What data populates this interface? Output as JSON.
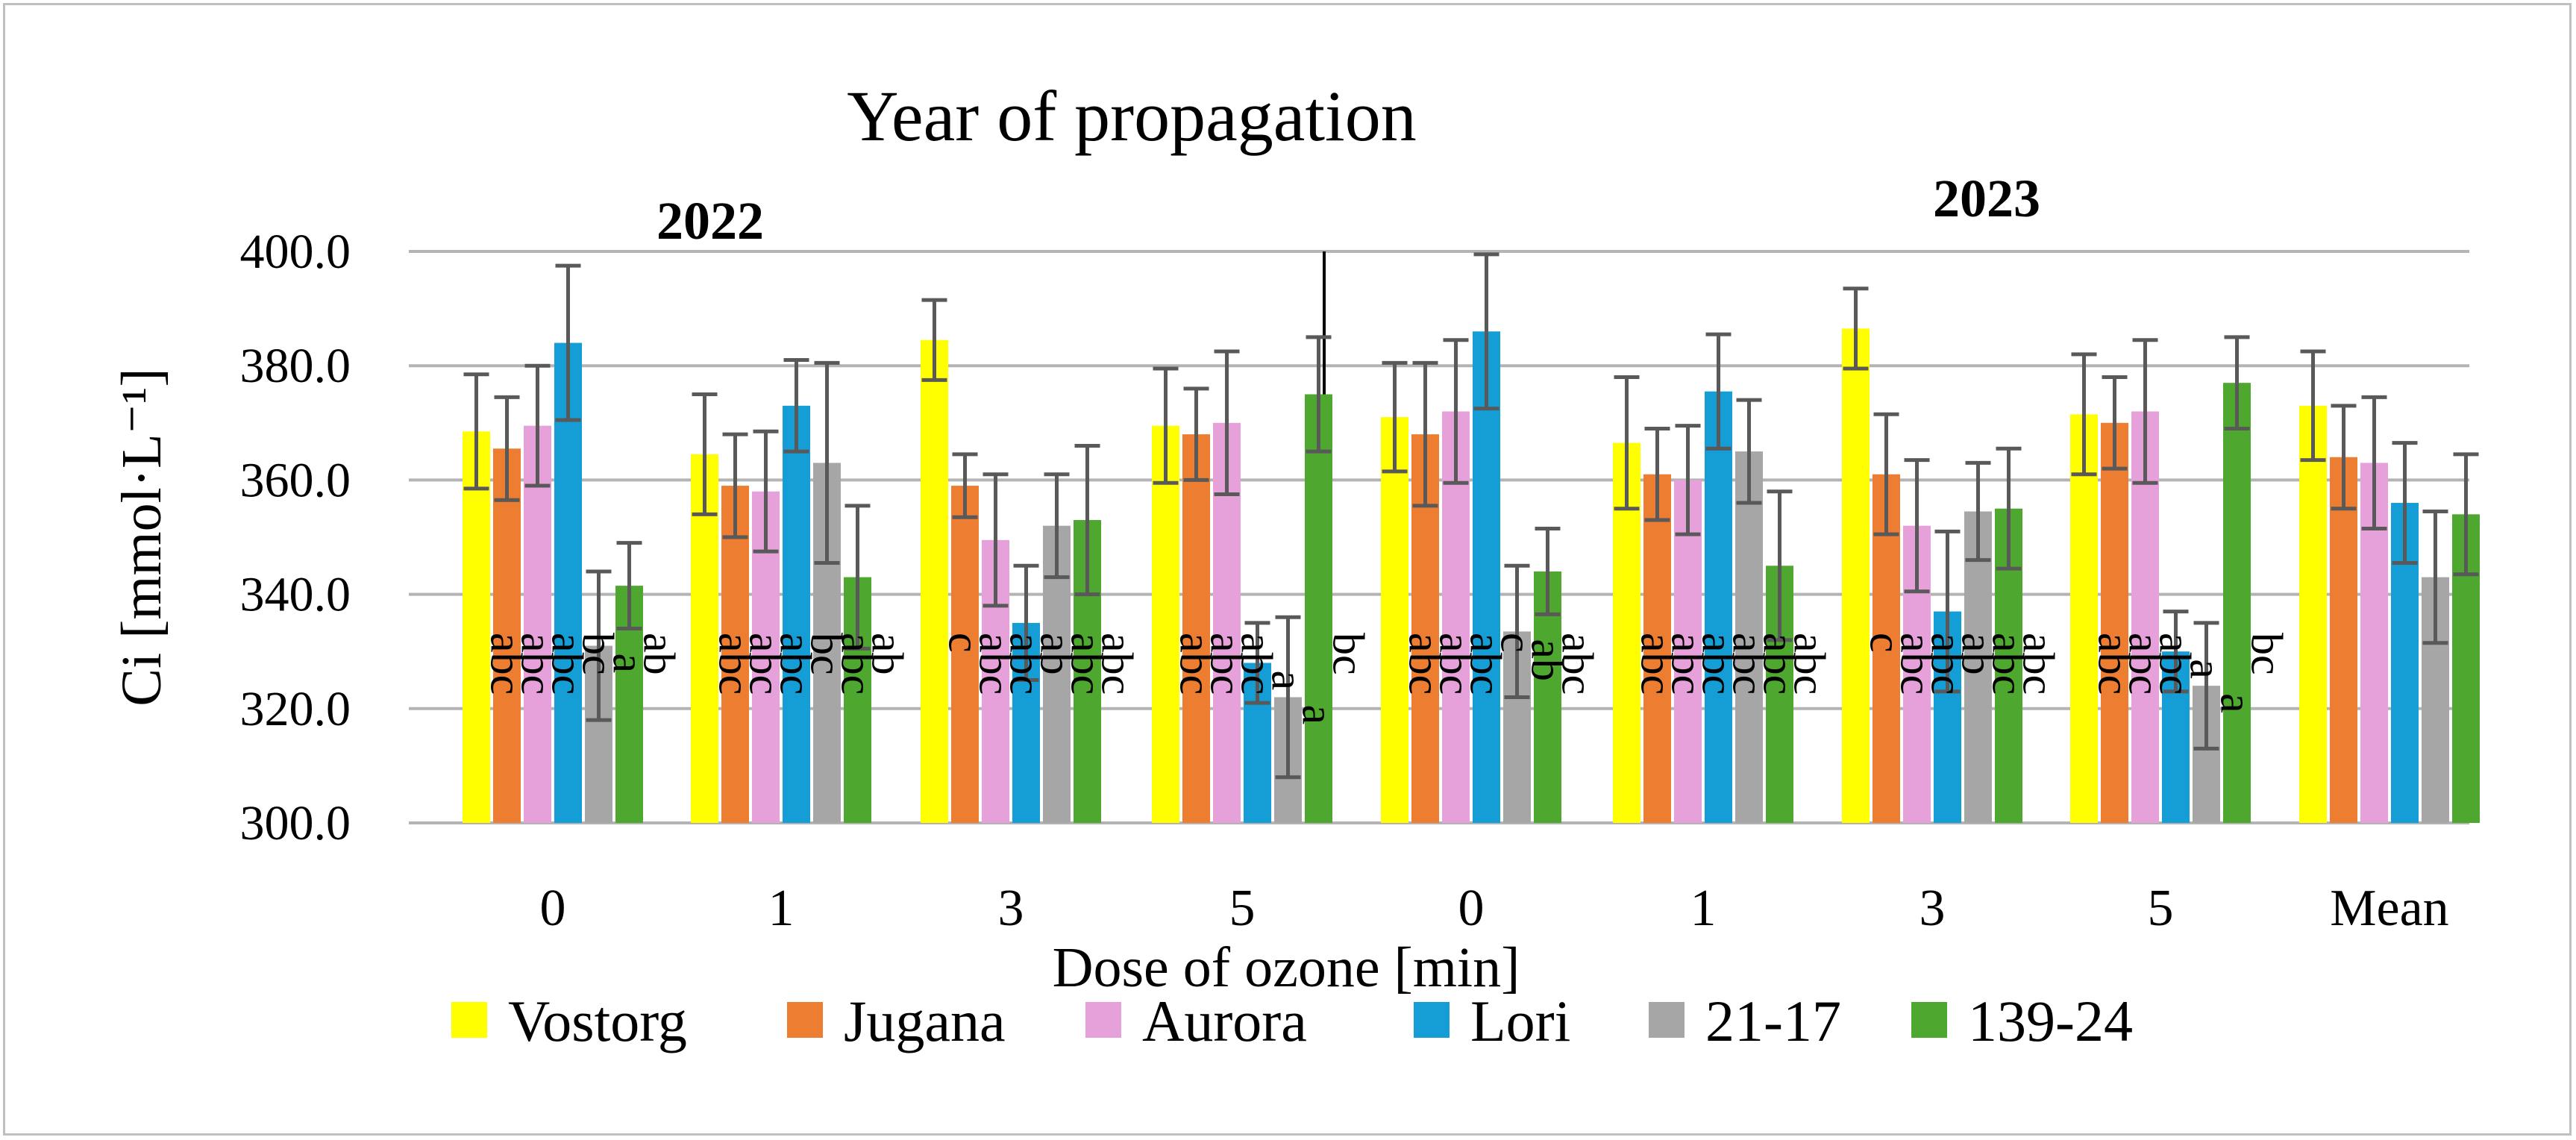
{
  "chart_data": {
    "type": "bar",
    "title": "Year of propagation",
    "year_labels": [
      "2022",
      "2023"
    ],
    "xlabel": "Dose of ozone [min]",
    "ylabel": "Ci [mmol·L⁻¹]",
    "ylim": [
      300,
      400
    ],
    "ytick_step": 20,
    "ytick_labels": [
      "300.0",
      "320.0",
      "340.0",
      "360.0",
      "380.0",
      "400.0"
    ],
    "categories": [
      "0",
      "1",
      "3",
      "5",
      "0",
      "1",
      "3",
      "5",
      "Mean"
    ],
    "legend_position": "bottom",
    "series": [
      {
        "name": "Vostorg",
        "color": "#ffff00",
        "values": [
          368.5,
          364.5,
          384.5,
          369.5,
          371,
          366.5,
          386.5,
          371.5,
          373
        ],
        "errors": [
          10,
          10.5,
          7,
          10,
          9.5,
          11.5,
          7,
          10.5,
          9.5
        ],
        "labels": [
          "abc",
          "abc",
          "c",
          "abc",
          "abc",
          "abc",
          "c",
          "abc",
          ""
        ]
      },
      {
        "name": "Jugana",
        "color": "#ed7d31",
        "values": [
          365.5,
          359,
          359,
          368,
          368,
          361,
          361,
          370,
          364
        ],
        "errors": [
          9,
          9,
          5.5,
          8,
          12.5,
          8,
          10.5,
          8,
          9
        ],
        "labels": [
          "abc",
          "abc",
          "abc",
          "abc",
          "abc",
          "abc",
          "abc",
          "abc",
          ""
        ]
      },
      {
        "name": "Aurora",
        "color": "#e7a1da",
        "values": [
          369.5,
          358,
          349.5,
          370,
          372,
          360,
          352,
          372,
          363
        ],
        "errors": [
          10.5,
          10.5,
          11.5,
          12.5,
          12.5,
          9.5,
          11.5,
          12.5,
          11.5
        ],
        "labels": [
          "abc",
          "abc",
          "abc",
          "abc",
          "abc",
          "abc",
          "abc",
          "abc",
          ""
        ]
      },
      {
        "name": "Lori",
        "color": "#159ed5",
        "values": [
          384,
          373,
          335,
          328,
          386,
          375.5,
          337,
          330,
          356
        ],
        "errors": [
          13.5,
          8,
          10,
          7,
          13.5,
          10,
          14,
          7,
          10.5
        ],
        "labels": [
          "bc",
          "bc",
          "ab",
          "a",
          "c",
          "abc",
          "ab",
          "a",
          ""
        ]
      },
      {
        "name": "21-17",
        "color": "#a6a6a6",
        "values": [
          331,
          363,
          352,
          322,
          333.5,
          365,
          354.5,
          324,
          343
        ],
        "errors": [
          13,
          17.5,
          9,
          14,
          11.5,
          9,
          8.5,
          11,
          11.5
        ],
        "labels": [
          "a",
          "abc",
          "abc",
          "a",
          "ab",
          "abc",
          "abc",
          "a",
          ""
        ]
      },
      {
        "name": "139-24",
        "color": "#4ea72e",
        "values": [
          341.5,
          343,
          353,
          375,
          344,
          345,
          355,
          377,
          354
        ],
        "errors": [
          7.5,
          12.5,
          13,
          10,
          7.5,
          13,
          10.5,
          8,
          10.5
        ],
        "labels": [
          "ab",
          "ab",
          "abc",
          "bc",
          "abc",
          "abc",
          "abc",
          "bc",
          ""
        ]
      }
    ]
  }
}
